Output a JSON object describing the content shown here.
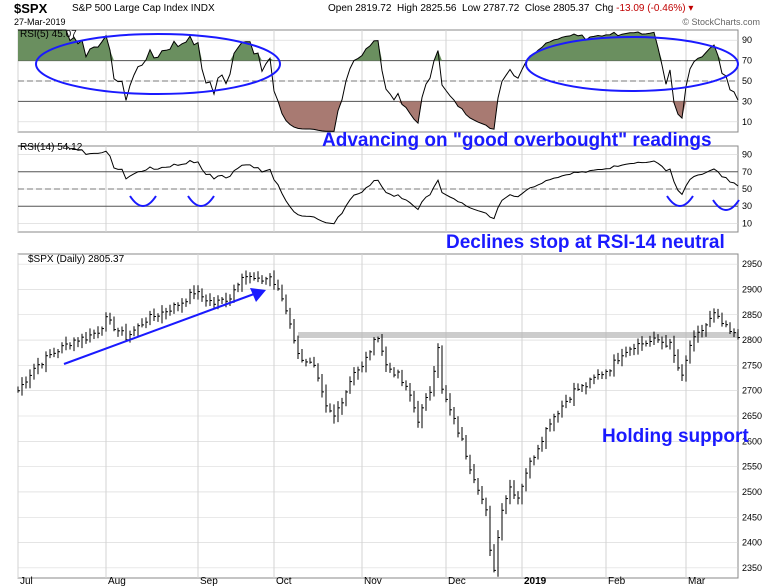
{
  "header": {
    "symbol": "$SPX",
    "subtitle": "S&P 500 Large Cap Index INDX",
    "date": "27-Mar-2019",
    "open_label": "Open",
    "open": "2819.72",
    "high_label": "High",
    "high": "2825.56",
    "low_label": "Low",
    "low": "2787.72",
    "close_label": "Close",
    "close": "2805.37",
    "chg_label": "Chg",
    "chg": "-13.09 (-0.46%)",
    "brand": "© StockCharts.com"
  },
  "annotations": {
    "rsi5": "Advancing on \"good overbought\" readings",
    "rsi14": "Declines stop at RSI-14 neutral",
    "price": "Holding support"
  },
  "colors": {
    "annotation": "#1a1aff",
    "overbought_fill": "#6a8f5f",
    "oversold_fill": "#a87a72",
    "line": "#000000",
    "grid": "#d3d3d3",
    "support_band": "#bbbbbb",
    "negative": "#c00000"
  },
  "chart_data": [
    {
      "type": "line",
      "title": "RSI(5) 45.07",
      "ylim": [
        0,
        100
      ],
      "ticks": [
        10,
        30,
        50,
        70,
        90
      ],
      "reference_lines": [
        30,
        50,
        70
      ],
      "overbought": 70,
      "oversold": 30,
      "series": [
        {
          "name": "RSI(5)",
          "last": 45.07
        }
      ]
    },
    {
      "type": "line",
      "title": "RSI(14) 54.12",
      "ylim": [
        0,
        100
      ],
      "ticks": [
        10,
        30,
        50,
        70,
        90
      ],
      "reference_lines": [
        30,
        50,
        70
      ],
      "series": [
        {
          "name": "RSI(14)",
          "last": 54.12
        }
      ]
    },
    {
      "type": "ohlc",
      "title": "$SPX (Daily) 2805.37",
      "ylim": [
        2330,
        2970
      ],
      "yticks": [
        2350,
        2400,
        2450,
        2500,
        2550,
        2600,
        2650,
        2700,
        2750,
        2800,
        2850,
        2900,
        2950
      ],
      "support_level": 2810,
      "x_labels": [
        "Jul",
        "Aug",
        "Sep",
        "Oct",
        "Nov",
        "Dec",
        "2019",
        "Feb",
        "Mar"
      ],
      "x_label_positions": [
        0,
        22,
        45,
        64,
        86,
        107,
        126,
        147,
        167
      ],
      "anchors": [
        {
          "i": 0,
          "v": 2700
        },
        {
          "i": 4,
          "v": 2745
        },
        {
          "i": 8,
          "v": 2770
        },
        {
          "i": 14,
          "v": 2800
        },
        {
          "i": 17,
          "v": 2805
        },
        {
          "i": 20,
          "v": 2818
        },
        {
          "i": 22,
          "v": 2840
        },
        {
          "i": 27,
          "v": 2805
        },
        {
          "i": 32,
          "v": 2840
        },
        {
          "i": 38,
          "v": 2862
        },
        {
          "i": 41,
          "v": 2875
        },
        {
          "i": 44,
          "v": 2895
        },
        {
          "i": 49,
          "v": 2872
        },
        {
          "i": 53,
          "v": 2885
        },
        {
          "i": 56,
          "v": 2930
        },
        {
          "i": 60,
          "v": 2916
        },
        {
          "i": 63,
          "v": 2925
        },
        {
          "i": 66,
          "v": 2882
        },
        {
          "i": 68,
          "v": 2835
        },
        {
          "i": 70,
          "v": 2770
        },
        {
          "i": 72,
          "v": 2760
        },
        {
          "i": 74,
          "v": 2745
        },
        {
          "i": 77,
          "v": 2665
        },
        {
          "i": 79,
          "v": 2648
        },
        {
          "i": 82,
          "v": 2700
        },
        {
          "i": 84,
          "v": 2740
        },
        {
          "i": 86,
          "v": 2745
        },
        {
          "i": 88,
          "v": 2780
        },
        {
          "i": 90,
          "v": 2810
        },
        {
          "i": 92,
          "v": 2750
        },
        {
          "i": 95,
          "v": 2730
        },
        {
          "i": 98,
          "v": 2690
        },
        {
          "i": 100,
          "v": 2643
        },
        {
          "i": 103,
          "v": 2700
        },
        {
          "i": 105,
          "v": 2790
        },
        {
          "i": 106,
          "v": 2700
        },
        {
          "i": 109,
          "v": 2640
        },
        {
          "i": 111,
          "v": 2600
        },
        {
          "i": 113,
          "v": 2550
        },
        {
          "i": 115,
          "v": 2510
        },
        {
          "i": 117,
          "v": 2460
        },
        {
          "i": 118,
          "v": 2380
        },
        {
          "i": 119,
          "v": 2350
        },
        {
          "i": 121,
          "v": 2470
        },
        {
          "i": 123,
          "v": 2510
        },
        {
          "i": 125,
          "v": 2490
        },
        {
          "i": 127,
          "v": 2540
        },
        {
          "i": 130,
          "v": 2590
        },
        {
          "i": 133,
          "v": 2640
        },
        {
          "i": 136,
          "v": 2670
        },
        {
          "i": 139,
          "v": 2700
        },
        {
          "i": 142,
          "v": 2710
        },
        {
          "i": 145,
          "v": 2730
        },
        {
          "i": 148,
          "v": 2745
        },
        {
          "i": 151,
          "v": 2775
        },
        {
          "i": 154,
          "v": 2790
        },
        {
          "i": 157,
          "v": 2795
        },
        {
          "i": 160,
          "v": 2800
        },
        {
          "i": 163,
          "v": 2790
        },
        {
          "i": 165,
          "v": 2745
        },
        {
          "i": 166,
          "v": 2725
        },
        {
          "i": 168,
          "v": 2790
        },
        {
          "i": 170,
          "v": 2810
        },
        {
          "i": 172,
          "v": 2830
        },
        {
          "i": 174,
          "v": 2850
        },
        {
          "i": 176,
          "v": 2832
        },
        {
          "i": 178,
          "v": 2815
        },
        {
          "i": 180,
          "v": 2805
        }
      ]
    }
  ]
}
